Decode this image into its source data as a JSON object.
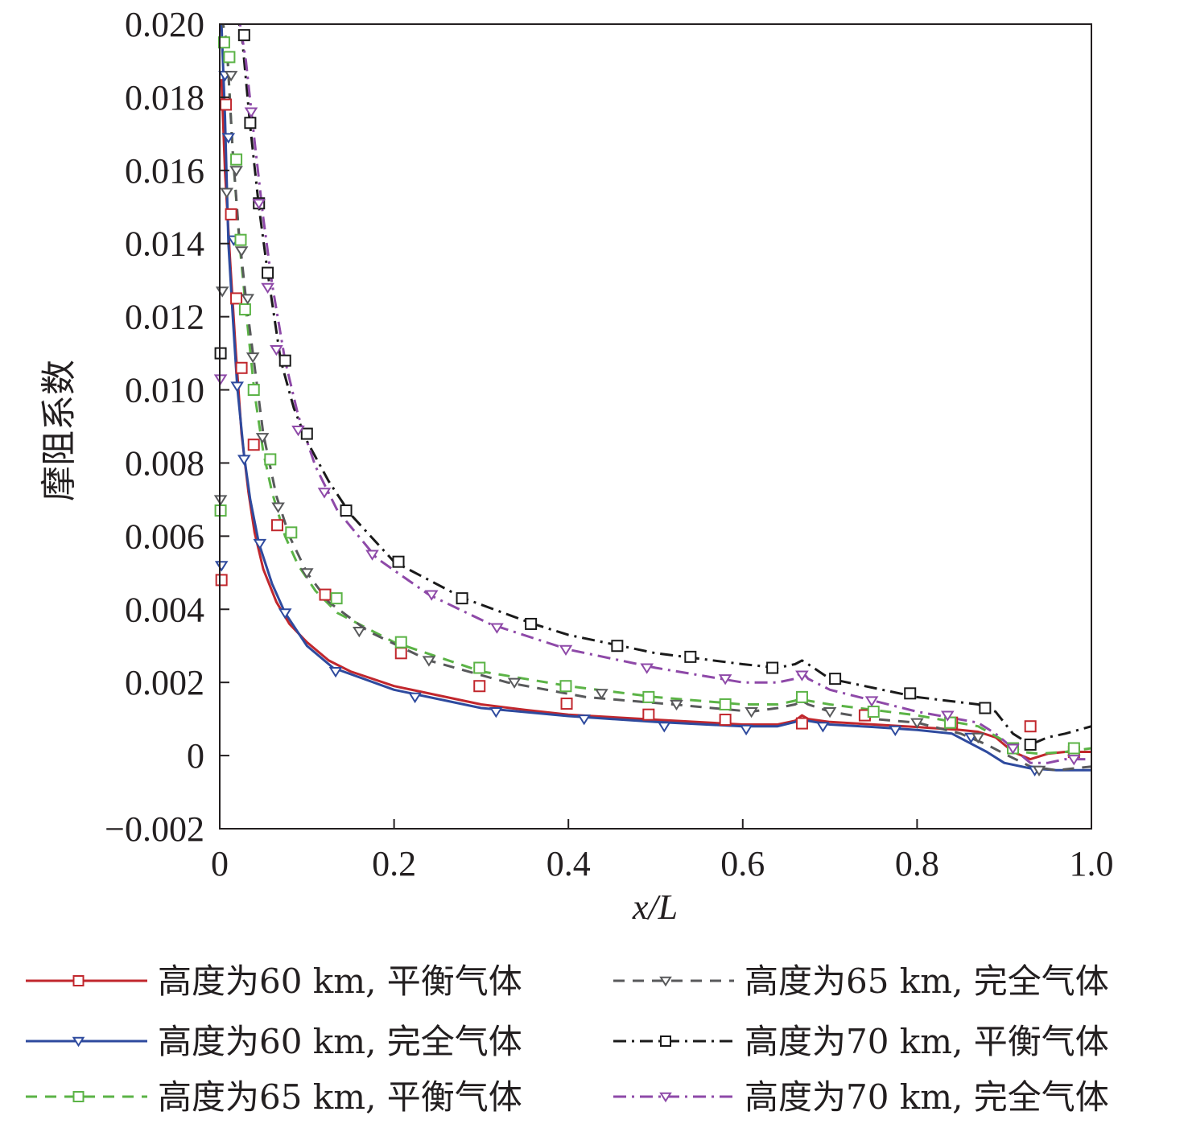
{
  "chart_data": {
    "type": "line",
    "title": "",
    "xlabel": "x/L",
    "ylabel": "摩阻系数",
    "xlim": [
      0,
      1.0
    ],
    "ylim": [
      -0.002,
      0.02
    ],
    "x_ticks": [
      0,
      0.2,
      0.4,
      0.6,
      0.8,
      1.0
    ],
    "x_tick_labels": [
      "0",
      "0.2",
      "0.4",
      "0.6",
      "0.8",
      "1.0"
    ],
    "y_ticks": [
      -0.002,
      0,
      0.002,
      0.004,
      0.006,
      0.008,
      0.01,
      0.012,
      0.014,
      0.016,
      0.018,
      0.02
    ],
    "y_tick_labels": [
      "−0.002",
      "0",
      "0.002",
      "0.004",
      "0.006",
      "0.008",
      "0.010",
      "0.012",
      "0.014",
      "0.016",
      "0.018",
      "0.020"
    ],
    "grid": false,
    "legend_position": "bottom",
    "series": [
      {
        "name": "高度为60 km, 平衡气体",
        "color": "#c1272d",
        "dash": "solid",
        "marker": "square",
        "x": [
          0.002,
          0.006,
          0.012,
          0.018,
          0.025,
          0.033,
          0.04,
          0.05,
          0.065,
          0.08,
          0.1,
          0.125,
          0.15,
          0.2,
          0.25,
          0.3,
          0.35,
          0.4,
          0.5,
          0.6,
          0.64,
          0.66,
          0.668,
          0.675,
          0.7,
          0.8,
          0.85,
          0.87,
          0.89,
          0.91,
          0.93,
          0.95,
          0.97,
          1.0
        ],
        "y": [
          0.0185,
          0.016,
          0.0135,
          0.0112,
          0.0088,
          0.0072,
          0.0061,
          0.0051,
          0.0042,
          0.0036,
          0.0031,
          0.0026,
          0.0023,
          0.0019,
          0.00165,
          0.0014,
          0.00125,
          0.00112,
          0.00098,
          0.00085,
          0.00085,
          0.00095,
          0.0011,
          0.001,
          0.00092,
          0.00078,
          0.0007,
          0.00065,
          0.0005,
          0.0001,
          -0.0001,
          5e-05,
          0.0001,
          0.0001
        ],
        "marker_x": [
          0.002,
          0.007,
          0.013,
          0.019,
          0.025,
          0.039,
          0.066,
          0.121,
          0.208,
          0.298,
          0.398,
          0.492,
          0.58,
          0.668,
          0.74,
          0.84,
          0.93,
          0.98
        ],
        "marker_y": [
          0.0048,
          0.0178,
          0.0148,
          0.0125,
          0.0106,
          0.0085,
          0.0063,
          0.0044,
          0.0028,
          0.0019,
          0.00142,
          0.00112,
          0.00098,
          0.00088,
          0.0011,
          0.0009,
          0.0008,
          0.0001
        ]
      },
      {
        "name": "高度为60 km, 完全气体",
        "color": "#2e4a9e",
        "dash": "solid",
        "marker": "triangle-down",
        "x": [
          0.002,
          0.006,
          0.01,
          0.015,
          0.02,
          0.028,
          0.035,
          0.045,
          0.06,
          0.075,
          0.1,
          0.13,
          0.2,
          0.3,
          0.4,
          0.5,
          0.6,
          0.64,
          0.66,
          0.668,
          0.675,
          0.7,
          0.75,
          0.8,
          0.84,
          0.86,
          0.88,
          0.9,
          0.93,
          0.96,
          1.0
        ],
        "y": [
          0.02,
          0.0175,
          0.014,
          0.012,
          0.0101,
          0.0082,
          0.007,
          0.0058,
          0.0047,
          0.0039,
          0.003,
          0.0024,
          0.0018,
          0.0013,
          0.00108,
          0.00092,
          0.0008,
          0.0008,
          0.00092,
          0.001,
          0.00095,
          0.00085,
          0.00078,
          0.0007,
          0.0006,
          0.00035,
          0.0001,
          -0.0002,
          -0.00035,
          -0.0004,
          -0.0004
        ],
        "marker_x": [
          0.002,
          0.006,
          0.01,
          0.016,
          0.02,
          0.028,
          0.046,
          0.075,
          0.133,
          0.224,
          0.317,
          0.418,
          0.51,
          0.604,
          0.692,
          0.775,
          0.862,
          0.935
        ],
        "marker_y": [
          0.0052,
          0.0186,
          0.0169,
          0.0141,
          0.0101,
          0.0081,
          0.0058,
          0.0039,
          0.0023,
          0.0016,
          0.0012,
          0.001,
          0.0008,
          0.00072,
          0.0008,
          0.0007,
          0.0005,
          -0.0004
        ]
      },
      {
        "name": "高度为65 km, 平衡气体",
        "color": "#5bb346",
        "dash": "dashed",
        "marker": "square",
        "x": [
          0.002,
          0.008,
          0.015,
          0.022,
          0.03,
          0.04,
          0.05,
          0.06,
          0.075,
          0.09,
          0.11,
          0.135,
          0.2,
          0.3,
          0.4,
          0.5,
          0.6,
          0.64,
          0.66,
          0.668,
          0.675,
          0.7,
          0.8,
          0.87,
          0.9,
          0.92,
          0.94,
          0.97,
          1.0
        ],
        "y": [
          0.0202,
          0.0195,
          0.0165,
          0.0142,
          0.0122,
          0.0099,
          0.0083,
          0.0072,
          0.006,
          0.0052,
          0.0045,
          0.0039,
          0.0031,
          0.0023,
          0.0019,
          0.0016,
          0.0014,
          0.0014,
          0.0015,
          0.0016,
          0.0015,
          0.0014,
          0.0011,
          0.0008,
          0.0004,
          0.0001,
          5e-05,
          0.0001,
          0.0002
        ],
        "marker_x": [
          0.001,
          0.005,
          0.011,
          0.019,
          0.024,
          0.029,
          0.039,
          0.058,
          0.082,
          0.134,
          0.208,
          0.298,
          0.397,
          0.492,
          0.58,
          0.668,
          0.75,
          0.838,
          0.91,
          0.98
        ],
        "marker_y": [
          0.0067,
          0.0195,
          0.0191,
          0.0163,
          0.0141,
          0.0122,
          0.01,
          0.0081,
          0.0061,
          0.0043,
          0.0031,
          0.0024,
          0.0019,
          0.0016,
          0.0014,
          0.0016,
          0.0012,
          0.0009,
          0.0002,
          0.0002
        ]
      },
      {
        "name": "高度为65 km, 完全气体",
        "color": "#58595b",
        "dash": "dashed",
        "marker": "triangle-down",
        "x": [
          0.002,
          0.008,
          0.015,
          0.022,
          0.03,
          0.038,
          0.05,
          0.065,
          0.08,
          0.1,
          0.125,
          0.17,
          0.24,
          0.33,
          0.42,
          0.52,
          0.61,
          0.64,
          0.66,
          0.668,
          0.675,
          0.7,
          0.75,
          0.8,
          0.85,
          0.88,
          0.9,
          0.93,
          0.96,
          1.0
        ],
        "y": [
          0.0202,
          0.0195,
          0.0165,
          0.0143,
          0.0125,
          0.011,
          0.0088,
          0.0071,
          0.006,
          0.005,
          0.0042,
          0.0034,
          0.0026,
          0.002,
          0.0016,
          0.0014,
          0.0012,
          0.0013,
          0.0014,
          0.0015,
          0.0014,
          0.0012,
          0.001,
          0.0009,
          0.0006,
          0.0003,
          5e-05,
          -0.0003,
          -0.0004,
          -0.0003
        ],
        "marker_x": [
          0.001,
          0.003,
          0.008,
          0.013,
          0.019,
          0.025,
          0.032,
          0.038,
          0.049,
          0.067,
          0.1,
          0.16,
          0.24,
          0.338,
          0.438,
          0.524,
          0.61,
          0.7,
          0.8,
          0.87,
          0.94
        ],
        "marker_y": [
          0.007,
          0.0127,
          0.0154,
          0.0186,
          0.016,
          0.0138,
          0.0125,
          0.0109,
          0.0087,
          0.0068,
          0.005,
          0.0034,
          0.0026,
          0.002,
          0.0017,
          0.0014,
          0.0012,
          0.0012,
          0.0009,
          0.0005,
          -0.0004
        ]
      },
      {
        "name": "高度为70 km, 平衡气体",
        "color": "#1a1a1a",
        "dash": "dashdot",
        "marker": "square",
        "x": [
          0.015,
          0.025,
          0.035,
          0.045,
          0.055,
          0.07,
          0.085,
          0.1,
          0.125,
          0.15,
          0.2,
          0.28,
          0.36,
          0.4,
          0.5,
          0.6,
          0.64,
          0.66,
          0.668,
          0.675,
          0.7,
          0.8,
          0.87,
          0.89,
          0.91,
          0.93,
          0.95,
          0.97,
          1.0
        ],
        "y": [
          0.0205,
          0.0198,
          0.0172,
          0.015,
          0.0132,
          0.0108,
          0.0095,
          0.0086,
          0.0075,
          0.0066,
          0.0053,
          0.0043,
          0.0036,
          0.0033,
          0.0028,
          0.0025,
          0.0024,
          0.0025,
          0.0026,
          0.0025,
          0.0021,
          0.0016,
          0.0014,
          0.0012,
          0.0006,
          0.0003,
          0.0005,
          0.0006,
          0.0008
        ],
        "marker_x": [
          0.001,
          0.028,
          0.035,
          0.045,
          0.055,
          0.075,
          0.1,
          0.145,
          0.205,
          0.278,
          0.357,
          0.456,
          0.54,
          0.634,
          0.706,
          0.792,
          0.878,
          0.93
        ],
        "marker_y": [
          0.011,
          0.0197,
          0.0173,
          0.0151,
          0.0132,
          0.0108,
          0.0088,
          0.0067,
          0.0053,
          0.0043,
          0.0036,
          0.003,
          0.0027,
          0.0024,
          0.0021,
          0.0017,
          0.0013,
          0.0003
        ]
      },
      {
        "name": "高度为70 km, 完全气体",
        "color": "#8e49a8",
        "dash": "dashdot",
        "marker": "triangle-down",
        "x": [
          0.02,
          0.03,
          0.04,
          0.05,
          0.06,
          0.075,
          0.09,
          0.11,
          0.135,
          0.18,
          0.24,
          0.31,
          0.4,
          0.5,
          0.6,
          0.64,
          0.66,
          0.668,
          0.675,
          0.7,
          0.8,
          0.87,
          0.89,
          0.91,
          0.93,
          0.95,
          0.97,
          1.0
        ],
        "y": [
          0.0205,
          0.019,
          0.0168,
          0.0147,
          0.0129,
          0.0108,
          0.0093,
          0.0079,
          0.0067,
          0.0054,
          0.0044,
          0.0036,
          0.0029,
          0.0024,
          0.002,
          0.002,
          0.0021,
          0.0023,
          0.0021,
          0.0018,
          0.0012,
          0.0009,
          0.0006,
          0.0002,
          -0.0002,
          -0.0002,
          -0.0001,
          -0.0001
        ],
        "marker_x": [
          0.001,
          0.036,
          0.045,
          0.055,
          0.065,
          0.09,
          0.12,
          0.175,
          0.243,
          0.318,
          0.397,
          0.49,
          0.58,
          0.668,
          0.748,
          0.835,
          0.91,
          0.98
        ],
        "marker_y": [
          0.0103,
          0.0176,
          0.0151,
          0.0128,
          0.0111,
          0.0089,
          0.0072,
          0.0055,
          0.0044,
          0.0035,
          0.0029,
          0.0024,
          0.0021,
          0.0022,
          0.0015,
          0.0011,
          0.0002,
          -0.0001
        ]
      }
    ]
  }
}
